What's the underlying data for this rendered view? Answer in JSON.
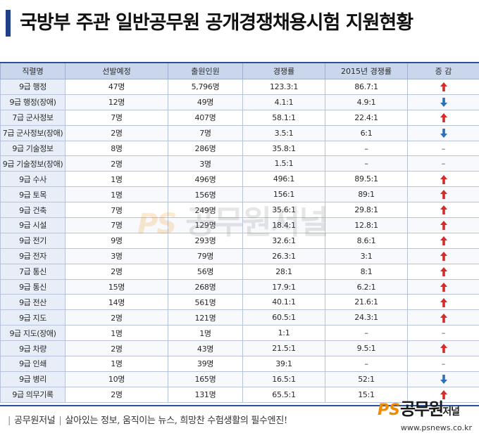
{
  "title": "국방부 주관 일반공무원 공개경쟁채용시험 지원현황",
  "colors": {
    "accent": "#1f3f86",
    "header_bg": "#c9d6ec",
    "up": "#d42b2b",
    "down": "#2f6fb6"
  },
  "table": {
    "headers": [
      "직렬명",
      "선발예정",
      "출원인원",
      "경쟁률",
      "2015년 경쟁률",
      "증 감"
    ],
    "rows": [
      {
        "name": "9급 행정",
        "planned": "47명",
        "applicants": "5,796명",
        "ratio": "123.3:1",
        "ratio2015": "86.7:1",
        "trend": "up"
      },
      {
        "name": "9급 행정(장애)",
        "planned": "12명",
        "applicants": "49명",
        "ratio": "4.1:1",
        "ratio2015": "4.9:1",
        "trend": "down"
      },
      {
        "name": "7급 군사정보",
        "planned": "7명",
        "applicants": "407명",
        "ratio": "58.1:1",
        "ratio2015": "22.4:1",
        "trend": "up"
      },
      {
        "name": "7급 군사정보(장애)",
        "planned": "2명",
        "applicants": "7명",
        "ratio": "3.5:1",
        "ratio2015": "6:1",
        "trend": "down"
      },
      {
        "name": "9급 기술정보",
        "planned": "8명",
        "applicants": "286명",
        "ratio": "35.8:1",
        "ratio2015": "–",
        "trend": "none"
      },
      {
        "name": "9급 기술정보(장애)",
        "planned": "2명",
        "applicants": "3명",
        "ratio": "1.5:1",
        "ratio2015": "–",
        "trend": "none"
      },
      {
        "name": "9급 수사",
        "planned": "1명",
        "applicants": "496명",
        "ratio": "496:1",
        "ratio2015": "89.5:1",
        "trend": "up"
      },
      {
        "name": "9급 토목",
        "planned": "1명",
        "applicants": "156명",
        "ratio": "156:1",
        "ratio2015": "89:1",
        "trend": "up"
      },
      {
        "name": "9급 건축",
        "planned": "7명",
        "applicants": "249명",
        "ratio": "35.6:1",
        "ratio2015": "29.8:1",
        "trend": "up"
      },
      {
        "name": "9급 시설",
        "planned": "7명",
        "applicants": "129명",
        "ratio": "18.4:1",
        "ratio2015": "12.8:1",
        "trend": "up"
      },
      {
        "name": "9급 전기",
        "planned": "9명",
        "applicants": "293명",
        "ratio": "32.6:1",
        "ratio2015": "8.6:1",
        "trend": "up"
      },
      {
        "name": "9급 전자",
        "planned": "3명",
        "applicants": "79명",
        "ratio": "26.3:1",
        "ratio2015": "3:1",
        "trend": "up"
      },
      {
        "name": "7급 통신",
        "planned": "2명",
        "applicants": "56명",
        "ratio": "28:1",
        "ratio2015": "8:1",
        "trend": "up"
      },
      {
        "name": "9급 통신",
        "planned": "15명",
        "applicants": "268명",
        "ratio": "17.9:1",
        "ratio2015": "6.2:1",
        "trend": "up"
      },
      {
        "name": "9급 전산",
        "planned": "14명",
        "applicants": "561명",
        "ratio": "40.1:1",
        "ratio2015": "21.6:1",
        "trend": "up"
      },
      {
        "name": "9급 지도",
        "planned": "2명",
        "applicants": "121명",
        "ratio": "60.5:1",
        "ratio2015": "24.3:1",
        "trend": "up"
      },
      {
        "name": "9급 지도(장애)",
        "planned": "1명",
        "applicants": "1명",
        "ratio": "1:1",
        "ratio2015": "–",
        "trend": "none"
      },
      {
        "name": "9급 차량",
        "planned": "2명",
        "applicants": "43명",
        "ratio": "21.5:1",
        "ratio2015": "9.5:1",
        "trend": "up"
      },
      {
        "name": "9급 인쇄",
        "planned": "1명",
        "applicants": "39명",
        "ratio": "39:1",
        "ratio2015": "–",
        "trend": "none"
      },
      {
        "name": "9급 병리",
        "planned": "10명",
        "applicants": "165명",
        "ratio": "16.5:1",
        "ratio2015": "52:1",
        "trend": "down"
      },
      {
        "name": "9급 의무기록",
        "planned": "2명",
        "applicants": "131명",
        "ratio": "65.5:1",
        "ratio2015": "15:1",
        "trend": "up"
      }
    ],
    "dash": "–"
  },
  "watermark": {
    "ps": "PS",
    "name": "공무원저널"
  },
  "footer": {
    "brand": "공무원저널",
    "tagline": "살아있는 정보, 움직이는 뉴스, 희망찬 수험생활의 필수엔진!"
  },
  "logo": {
    "ps": "PS",
    "name": "공무원",
    "sub": "저널",
    "url": "www.psnews.co.kr"
  }
}
